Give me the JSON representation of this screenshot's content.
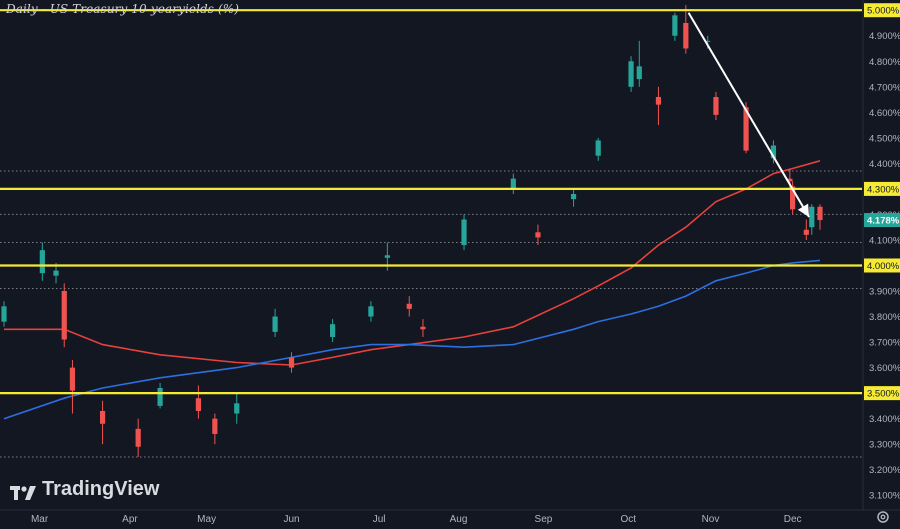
{
  "title": "Daily - US Treasury 10-yearyields (%)",
  "brand": {
    "name": "TradingView",
    "logo_icon": "tradingview-logo-icon"
  },
  "settings_icon": "gear-icon",
  "colors": {
    "background": "#131722",
    "up": "#26a69a",
    "down": "#ef5350",
    "ma_short": "#e8413c",
    "ma_long": "#2d6ee0",
    "level": "#f5ea34",
    "trend_arrow": "#ffffff",
    "current_label": "#26a69a"
  },
  "chart_data": {
    "type": "candlestick",
    "title": "Daily - US Treasury 10-yearyields (%)",
    "ylabel": "",
    "xlabel": "",
    "ylim": [
      3.05,
      5.04
    ],
    "x_start": "2023-02-16",
    "x_end": "2023-12-11",
    "y_ticks": [
      "5.000%",
      "4.900%",
      "4.800%",
      "4.700%",
      "4.600%",
      "4.500%",
      "4.400%",
      "4.300%",
      "4.200%",
      "4.100%",
      "4.000%",
      "3.900%",
      "3.800%",
      "3.700%",
      "3.600%",
      "3.500%",
      "3.400%",
      "3.300%",
      "3.200%",
      "3.100%"
    ],
    "x_ticks": [
      {
        "label": "Mar",
        "date": "2023-03-01"
      },
      {
        "label": "Apr",
        "date": "2023-04-03"
      },
      {
        "label": "May",
        "date": "2023-05-01"
      },
      {
        "label": "Jun",
        "date": "2023-06-01"
      },
      {
        "label": "Jul",
        "date": "2023-07-03"
      },
      {
        "label": "Aug",
        "date": "2023-08-01"
      },
      {
        "label": "Sep",
        "date": "2023-09-01"
      },
      {
        "label": "Oct",
        "date": "2023-10-02"
      },
      {
        "label": "Nov",
        "date": "2023-11-01"
      },
      {
        "label": "Dec",
        "date": "2023-12-01"
      }
    ],
    "horizontal_levels": [
      {
        "value": 5.0,
        "label": "5.000%",
        "style": "solid"
      },
      {
        "value": 4.3,
        "label": "4.300%",
        "style": "solid"
      },
      {
        "value": 4.0,
        "label": "4.000%",
        "style": "solid"
      },
      {
        "value": 3.5,
        "label": "3.500%",
        "style": "solid"
      },
      {
        "value": 4.37,
        "label": "",
        "style": "dotted"
      },
      {
        "value": 4.2,
        "label": "",
        "style": "dotted"
      },
      {
        "value": 4.09,
        "label": "",
        "style": "dotted"
      },
      {
        "value": 3.91,
        "label": "",
        "style": "dotted"
      },
      {
        "value": 3.25,
        "label": "",
        "style": "dotted"
      }
    ],
    "current_value": {
      "value": 4.178,
      "label": "4.178%"
    },
    "trend_arrow": {
      "from": {
        "date": "2023-10-24",
        "value": 4.99
      },
      "to": {
        "date": "2023-12-07",
        "value": 4.19
      }
    },
    "candles": [
      {
        "date": "2023-02-16",
        "open": 3.78,
        "high": 3.86,
        "low": 3.76,
        "close": 3.84
      },
      {
        "date": "2023-03-02",
        "open": 3.97,
        "high": 4.09,
        "low": 3.94,
        "close": 4.06
      },
      {
        "date": "2023-03-07",
        "open": 3.96,
        "high": 4.01,
        "low": 3.93,
        "close": 3.98
      },
      {
        "date": "2023-03-10",
        "open": 3.9,
        "high": 3.93,
        "low": 3.68,
        "close": 3.71
      },
      {
        "date": "2023-03-13",
        "open": 3.6,
        "high": 3.63,
        "low": 3.42,
        "close": 3.51
      },
      {
        "date": "2023-03-24",
        "open": 3.43,
        "high": 3.47,
        "low": 3.3,
        "close": 3.38
      },
      {
        "date": "2023-04-06",
        "open": 3.36,
        "high": 3.4,
        "low": 3.25,
        "close": 3.29
      },
      {
        "date": "2023-04-14",
        "open": 3.45,
        "high": 3.54,
        "low": 3.44,
        "close": 3.52
      },
      {
        "date": "2023-04-28",
        "open": 3.48,
        "high": 3.53,
        "low": 3.4,
        "close": 3.43
      },
      {
        "date": "2023-05-04",
        "open": 3.4,
        "high": 3.42,
        "low": 3.3,
        "close": 3.34
      },
      {
        "date": "2023-05-12",
        "open": 3.42,
        "high": 3.5,
        "low": 3.38,
        "close": 3.46
      },
      {
        "date": "2023-05-26",
        "open": 3.74,
        "high": 3.83,
        "low": 3.72,
        "close": 3.8
      },
      {
        "date": "2023-06-01",
        "open": 3.64,
        "high": 3.66,
        "low": 3.58,
        "close": 3.6
      },
      {
        "date": "2023-06-16",
        "open": 3.72,
        "high": 3.79,
        "low": 3.7,
        "close": 3.77
      },
      {
        "date": "2023-06-30",
        "open": 3.8,
        "high": 3.86,
        "low": 3.78,
        "close": 3.84
      },
      {
        "date": "2023-07-06",
        "open": 4.03,
        "high": 4.09,
        "low": 3.98,
        "close": 4.04
      },
      {
        "date": "2023-07-14",
        "open": 3.85,
        "high": 3.88,
        "low": 3.8,
        "close": 3.83
      },
      {
        "date": "2023-07-19",
        "open": 3.76,
        "high": 3.79,
        "low": 3.72,
        "close": 3.75
      },
      {
        "date": "2023-08-03",
        "open": 4.08,
        "high": 4.2,
        "low": 4.06,
        "close": 4.18
      },
      {
        "date": "2023-08-21",
        "open": 4.3,
        "high": 4.36,
        "low": 4.28,
        "close": 4.34
      },
      {
        "date": "2023-08-30",
        "open": 4.13,
        "high": 4.16,
        "low": 4.08,
        "close": 4.11
      },
      {
        "date": "2023-09-12",
        "open": 4.26,
        "high": 4.3,
        "low": 4.23,
        "close": 4.28
      },
      {
        "date": "2023-09-21",
        "open": 4.43,
        "high": 4.5,
        "low": 4.41,
        "close": 4.49
      },
      {
        "date": "2023-10-03",
        "open": 4.7,
        "high": 4.82,
        "low": 4.68,
        "close": 4.8
      },
      {
        "date": "2023-10-06",
        "open": 4.73,
        "high": 4.88,
        "low": 4.7,
        "close": 4.78
      },
      {
        "date": "2023-10-13",
        "open": 4.66,
        "high": 4.7,
        "low": 4.55,
        "close": 4.63
      },
      {
        "date": "2023-10-19",
        "open": 4.9,
        "high": 4.99,
        "low": 4.88,
        "close": 4.98
      },
      {
        "date": "2023-10-23",
        "open": 4.95,
        "high": 5.02,
        "low": 4.83,
        "close": 4.85
      },
      {
        "date": "2023-10-31",
        "open": 4.88,
        "high": 4.9,
        "low": 4.85,
        "close": 4.88
      },
      {
        "date": "2023-11-03",
        "open": 4.66,
        "high": 4.68,
        "low": 4.57,
        "close": 4.59
      },
      {
        "date": "2023-11-14",
        "open": 4.62,
        "high": 4.64,
        "low": 4.44,
        "close": 4.45
      },
      {
        "date": "2023-11-24",
        "open": 4.42,
        "high": 4.49,
        "low": 4.4,
        "close": 4.47
      },
      {
        "date": "2023-11-30",
        "open": 4.34,
        "high": 4.38,
        "low": 4.3,
        "close": 4.33
      },
      {
        "date": "2023-12-01",
        "open": 4.31,
        "high": 4.33,
        "low": 4.2,
        "close": 4.22
      },
      {
        "date": "2023-12-06",
        "open": 4.14,
        "high": 4.18,
        "low": 4.1,
        "close": 4.12
      },
      {
        "date": "2023-12-08",
        "open": 4.15,
        "high": 4.24,
        "low": 4.12,
        "close": 4.23
      },
      {
        "date": "2023-12-11",
        "open": 4.23,
        "high": 4.24,
        "low": 4.14,
        "close": 4.178
      }
    ],
    "moving_averages": [
      {
        "name": "",
        "color": "#e8413c",
        "points": [
          {
            "date": "2023-02-16",
            "value": 3.75
          },
          {
            "date": "2023-03-10",
            "value": 3.75
          },
          {
            "date": "2023-03-24",
            "value": 3.69
          },
          {
            "date": "2023-04-14",
            "value": 3.65
          },
          {
            "date": "2023-05-12",
            "value": 3.62
          },
          {
            "date": "2023-06-01",
            "value": 3.61
          },
          {
            "date": "2023-06-16",
            "value": 3.64
          },
          {
            "date": "2023-06-30",
            "value": 3.67
          },
          {
            "date": "2023-07-14",
            "value": 3.69
          },
          {
            "date": "2023-08-03",
            "value": 3.72
          },
          {
            "date": "2023-08-21",
            "value": 3.76
          },
          {
            "date": "2023-09-12",
            "value": 3.87
          },
          {
            "date": "2023-09-21",
            "value": 3.92
          },
          {
            "date": "2023-10-03",
            "value": 3.99
          },
          {
            "date": "2023-10-13",
            "value": 4.08
          },
          {
            "date": "2023-10-23",
            "value": 4.15
          },
          {
            "date": "2023-11-03",
            "value": 4.25
          },
          {
            "date": "2023-11-14",
            "value": 4.3
          },
          {
            "date": "2023-11-24",
            "value": 4.36
          },
          {
            "date": "2023-12-01",
            "value": 4.38
          },
          {
            "date": "2023-12-11",
            "value": 4.41
          }
        ]
      },
      {
        "name": "",
        "color": "#2d6ee0",
        "points": [
          {
            "date": "2023-02-16",
            "value": 3.4
          },
          {
            "date": "2023-03-10",
            "value": 3.48
          },
          {
            "date": "2023-03-24",
            "value": 3.52
          },
          {
            "date": "2023-04-14",
            "value": 3.56
          },
          {
            "date": "2023-05-12",
            "value": 3.6
          },
          {
            "date": "2023-06-01",
            "value": 3.64
          },
          {
            "date": "2023-06-16",
            "value": 3.67
          },
          {
            "date": "2023-06-30",
            "value": 3.69
          },
          {
            "date": "2023-07-14",
            "value": 3.69
          },
          {
            "date": "2023-08-03",
            "value": 3.68
          },
          {
            "date": "2023-08-21",
            "value": 3.69
          },
          {
            "date": "2023-09-12",
            "value": 3.75
          },
          {
            "date": "2023-09-21",
            "value": 3.78
          },
          {
            "date": "2023-10-03",
            "value": 3.81
          },
          {
            "date": "2023-10-13",
            "value": 3.84
          },
          {
            "date": "2023-10-23",
            "value": 3.88
          },
          {
            "date": "2023-11-03",
            "value": 3.94
          },
          {
            "date": "2023-11-14",
            "value": 3.97
          },
          {
            "date": "2023-11-24",
            "value": 4.0
          },
          {
            "date": "2023-12-01",
            "value": 4.01
          },
          {
            "date": "2023-12-11",
            "value": 4.02
          }
        ]
      }
    ]
  }
}
